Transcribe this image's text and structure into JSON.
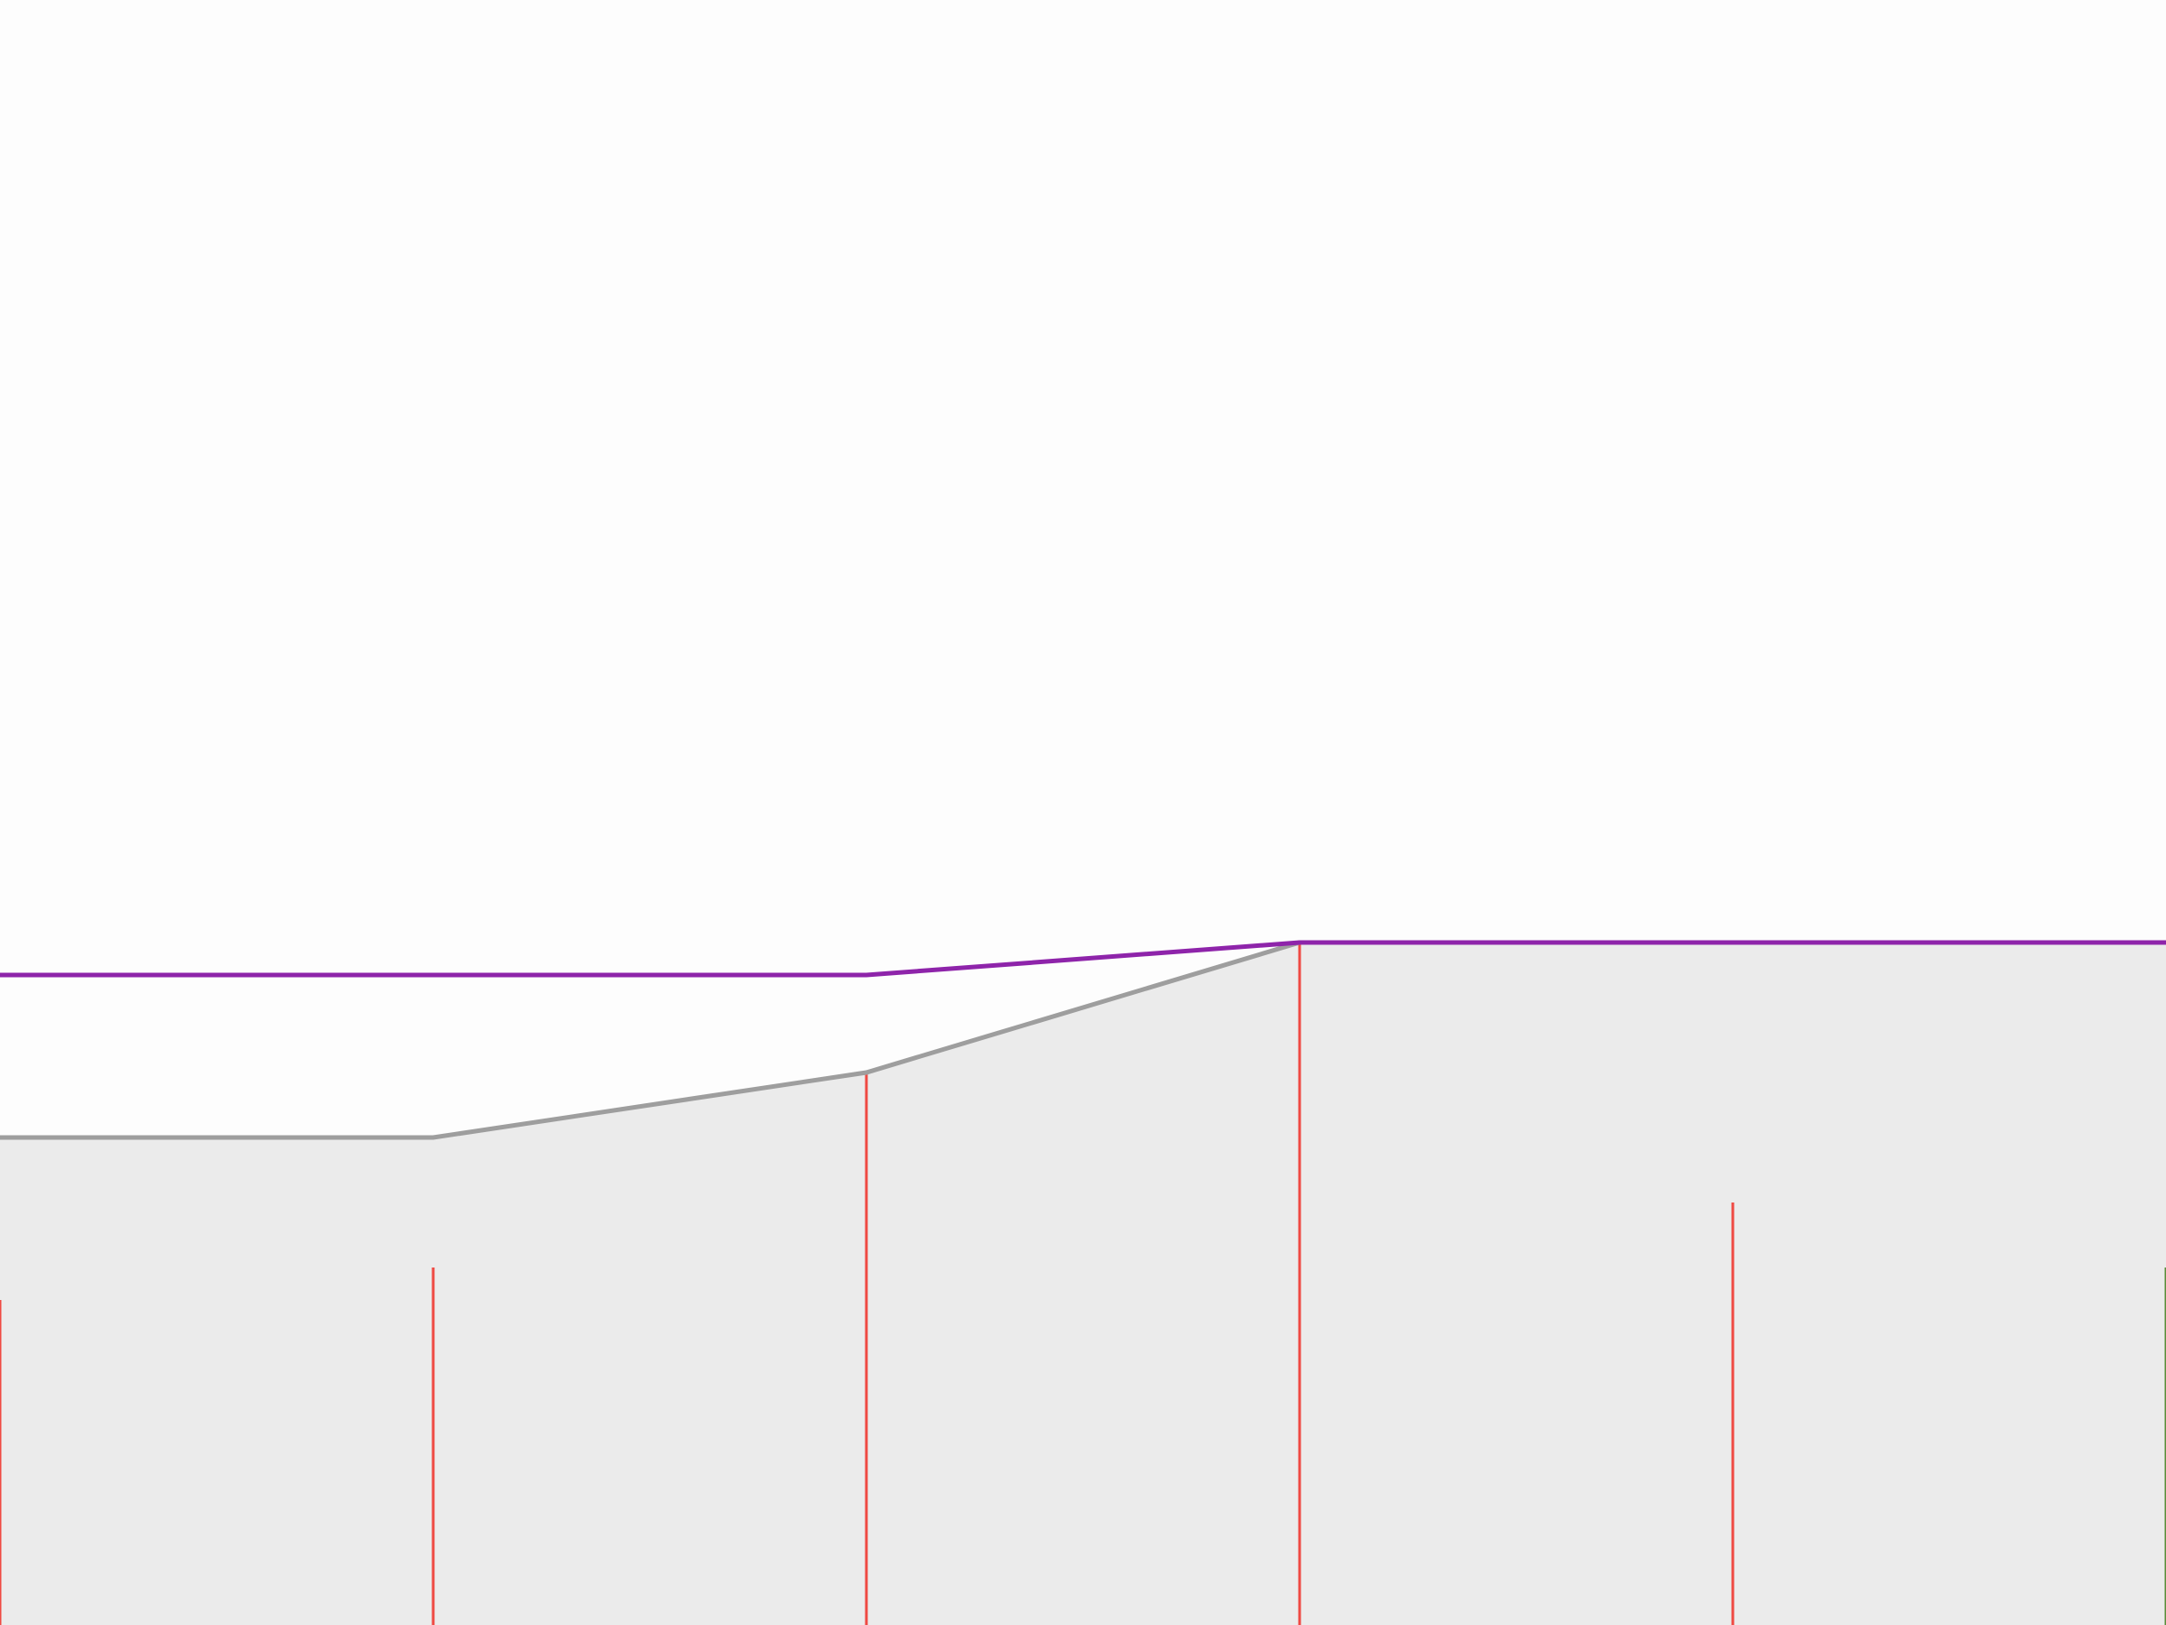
{
  "chart_data": {
    "type": "line",
    "x": [
      0,
      1,
      2,
      3,
      4,
      5
    ],
    "xlim": [
      0,
      5
    ],
    "ylim": [
      0,
      100
    ],
    "area_series": {
      "name": "",
      "values": [
        30,
        30,
        34,
        42,
        42,
        42
      ]
    },
    "upper_series": {
      "name": "",
      "values": [
        40,
        40,
        40,
        42,
        42,
        42
      ]
    },
    "bars": {
      "name": "",
      "values": [
        20,
        22,
        34,
        42,
        26,
        22
      ]
    },
    "grid": false,
    "legend": "none"
  },
  "colors": {
    "background": "#fdfdfd",
    "area_fill": "#ebebeb",
    "area_line": "#9e9e9e",
    "upper_line": "#8e24aa",
    "bars": "#ef4a43",
    "last_bar": "#5b8c3a"
  }
}
